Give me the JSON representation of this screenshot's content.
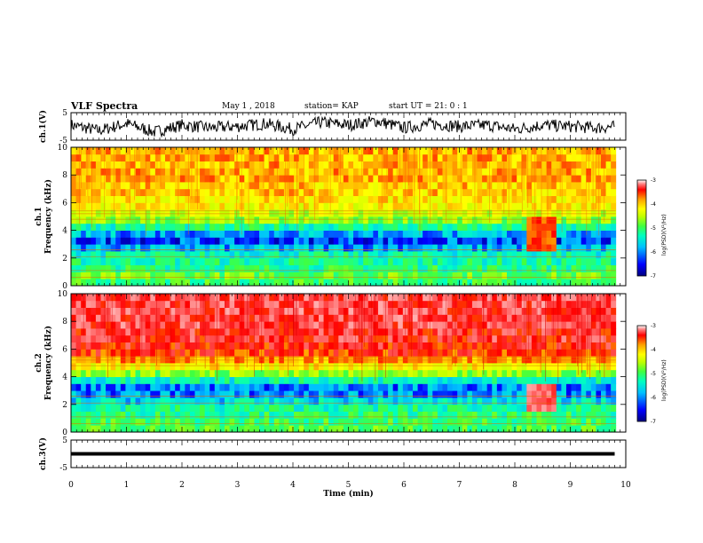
{
  "header": {
    "title": "VLF Spectra",
    "date": "May 1 , 2018",
    "station": "station= KAP",
    "start": "start UT = 21: 0 : 1"
  },
  "colors": {
    "colormap": [
      "#000080",
      "#0000ff",
      "#00c0ff",
      "#00ffc0",
      "#40ff40",
      "#c0ff00",
      "#ffff00",
      "#ffa000",
      "#ff0000",
      "#ff8080",
      "#ffffff"
    ]
  },
  "chart_data": [
    {
      "type": "line",
      "ylabel": "ch.1(V)",
      "ylim": [
        -5,
        5
      ],
      "yticks": [
        "5",
        "-5"
      ],
      "x": [
        0,
        0.5,
        1,
        1.5,
        2,
        2.5,
        3,
        3.5,
        4,
        4.5,
        5,
        5.5,
        6,
        6.5,
        7,
        7.5,
        8,
        8.5,
        9,
        9.5,
        9.8
      ],
      "values": [
        0.5,
        -1.5,
        1,
        -2,
        0.5,
        -0.5,
        0,
        1,
        -1,
        1.5,
        0.5,
        2,
        -0.5,
        1,
        0,
        0.5,
        -1,
        0.5,
        0,
        -0.5,
        0
      ]
    },
    {
      "type": "heatmap",
      "ylabel": "ch.1 Frequency (kHz)",
      "ylim": [
        0,
        10
      ],
      "yticks": [
        "0",
        "2",
        "4",
        "6",
        "8",
        "10"
      ],
      "colorbar": {
        "label": "log(PSD)(V²/Hz)",
        "ticks": [
          "-3",
          "-4",
          "-5",
          "-6",
          "-7"
        ],
        "range": [
          -7,
          -3
        ]
      },
      "freq_kHz": [
        0.25,
        0.75,
        1.25,
        1.75,
        2.25,
        2.75,
        3.25,
        3.75,
        4.25,
        4.75,
        5.25,
        5.75,
        6.25,
        6.75,
        7.25,
        7.75,
        8.25,
        8.75,
        9.25,
        9.75
      ],
      "log_psd": [
        -5.5,
        -5.3,
        -5.6,
        -5.7,
        -5.8,
        -6.2,
        -6.5,
        -6.2,
        -5.7,
        -5.2,
        -4.9,
        -4.6,
        -4.5,
        -4.4,
        -4.4,
        -4.3,
        -4.3,
        -4.3,
        -4.3,
        -4.3
      ],
      "event": {
        "x_range": [
          8.2,
          8.75
        ],
        "freq_range": [
          2.5,
          5.0
        ],
        "log_psd": -4.0
      }
    },
    {
      "type": "heatmap",
      "ylabel": "ch.2 Frequency (kHz)",
      "ylim": [
        0,
        10
      ],
      "yticks": [
        "0",
        "2",
        "4",
        "6",
        "8",
        "10"
      ],
      "colorbar": {
        "label": "log(PSD)(V²/Hz)",
        "ticks": [
          "-3",
          "-4",
          "-5",
          "-6",
          "-7"
        ],
        "range": [
          -7,
          -3
        ]
      },
      "freq_kHz": [
        0.25,
        0.75,
        1.25,
        1.75,
        2.25,
        2.75,
        3.25,
        3.75,
        4.25,
        4.75,
        5.25,
        5.75,
        6.25,
        6.75,
        7.25,
        7.75,
        8.25,
        8.75,
        9.25,
        9.75
      ],
      "log_psd": [
        -5.4,
        -5.5,
        -5.6,
        -5.7,
        -6.0,
        -6.3,
        -6.3,
        -5.8,
        -5.2,
        -4.6,
        -4.2,
        -3.9,
        -3.8,
        -3.7,
        -3.7,
        -3.6,
        -3.6,
        -3.6,
        -3.6,
        -3.6
      ],
      "event": {
        "x_range": [
          8.2,
          8.75
        ],
        "freq_range": [
          1.5,
          3.5
        ],
        "log_psd": -3.5
      }
    },
    {
      "type": "line",
      "ylabel": "ch.3(V)",
      "ylim": [
        -5,
        5
      ],
      "yticks": [
        "5",
        "-5"
      ],
      "x": [
        0,
        9.8
      ],
      "values": [
        0,
        0
      ]
    }
  ],
  "xaxis": {
    "label": "Time (min)",
    "ticks": [
      "0",
      "1",
      "2",
      "3",
      "4",
      "5",
      "6",
      "7",
      "8",
      "9",
      "10"
    ],
    "xlim": [
      0,
      10
    ]
  }
}
